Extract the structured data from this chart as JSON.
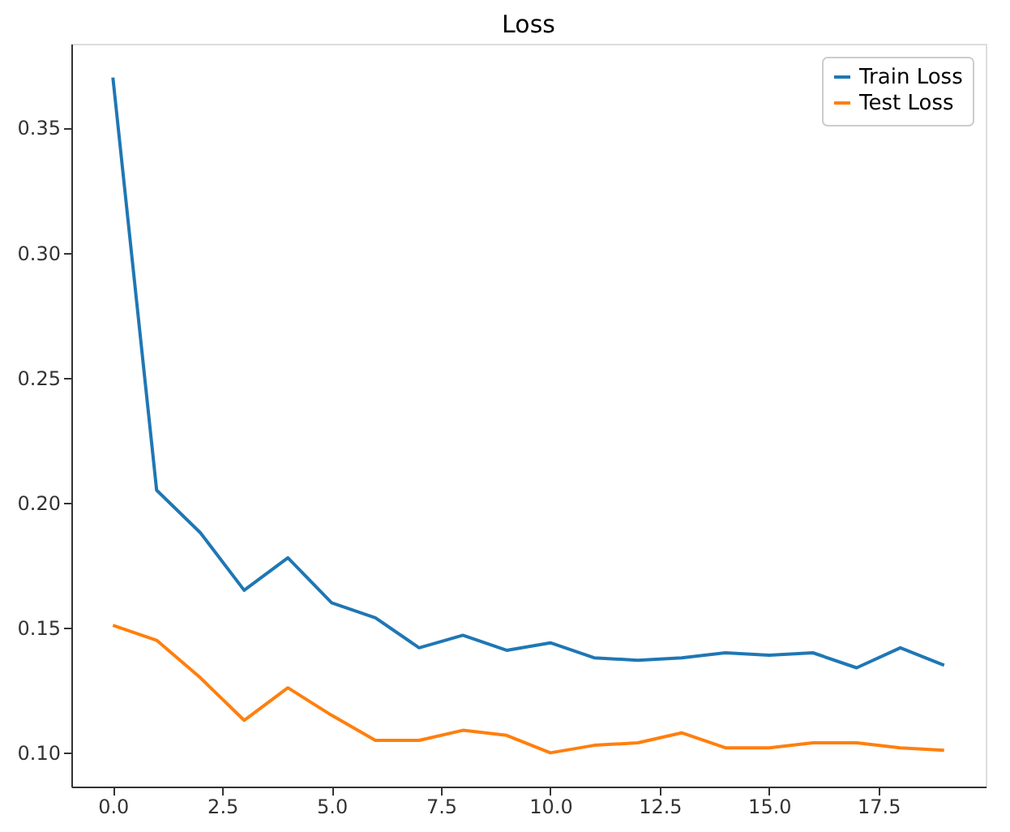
{
  "chart_data": {
    "type": "line",
    "title": "Loss",
    "x": [
      0,
      1,
      2,
      3,
      4,
      5,
      6,
      7,
      8,
      9,
      10,
      11,
      12,
      13,
      14,
      15,
      16,
      17,
      18,
      19
    ],
    "series": [
      {
        "name": "Train Loss",
        "color": "#1f77b4",
        "values": [
          0.37,
          0.205,
          0.188,
          0.165,
          0.178,
          0.16,
          0.154,
          0.142,
          0.147,
          0.141,
          0.144,
          0.138,
          0.137,
          0.138,
          0.14,
          0.139,
          0.14,
          0.134,
          0.142,
          0.135
        ]
      },
      {
        "name": "Test Loss",
        "color": "#ff7f0e",
        "values": [
          0.151,
          0.145,
          0.13,
          0.113,
          0.126,
          0.115,
          0.105,
          0.105,
          0.109,
          0.107,
          0.1,
          0.103,
          0.104,
          0.108,
          0.102,
          0.102,
          0.104,
          0.104,
          0.102,
          0.101
        ]
      }
    ],
    "xlim": [
      -0.95,
      19.95
    ],
    "ylim": [
      0.0865,
      0.3835
    ],
    "xticks": [
      {
        "value": 0,
        "label": "0.0"
      },
      {
        "value": 2.5,
        "label": "2.5"
      },
      {
        "value": 5,
        "label": "5.0"
      },
      {
        "value": 7.5,
        "label": "7.5"
      },
      {
        "value": 10,
        "label": "10.0"
      },
      {
        "value": 12.5,
        "label": "12.5"
      },
      {
        "value": 15,
        "label": "15.0"
      },
      {
        "value": 17.5,
        "label": "17.5"
      }
    ],
    "yticks": [
      {
        "value": 0.1,
        "label": "0.10"
      },
      {
        "value": 0.15,
        "label": "0.15"
      },
      {
        "value": 0.2,
        "label": "0.20"
      },
      {
        "value": 0.25,
        "label": "0.25"
      },
      {
        "value": 0.3,
        "label": "0.30"
      },
      {
        "value": 0.35,
        "label": "0.35"
      }
    ],
    "grid": false,
    "legend": "top right",
    "marker": "none",
    "line_style": "solid"
  }
}
